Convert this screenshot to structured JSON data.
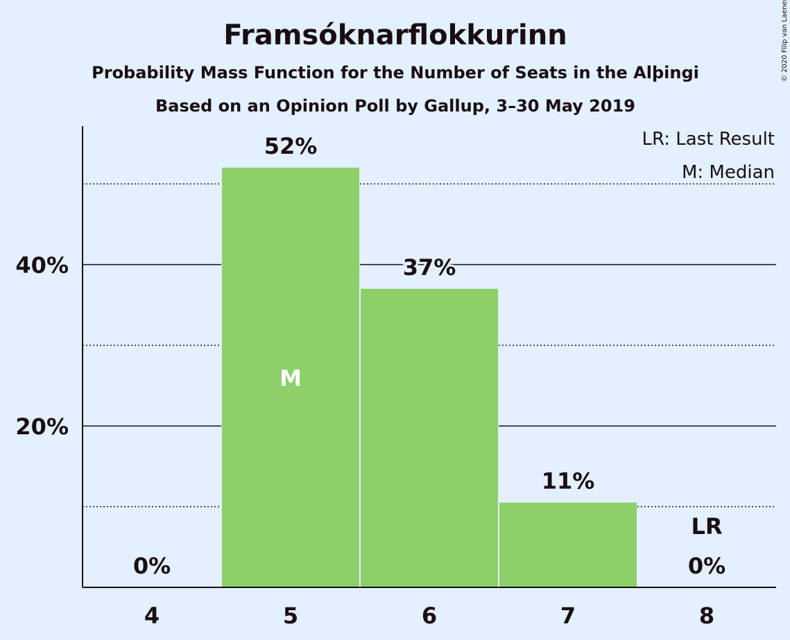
{
  "chart_data": {
    "type": "bar",
    "title": "Framsóknarflokkurinn",
    "subtitle": "Probability Mass Function for the Number of Seats in the Alþingi",
    "subtitle2": "Based on an Opinion Poll by Gallup, 3–30 May 2019",
    "categories": [
      "4",
      "5",
      "6",
      "7",
      "8"
    ],
    "values": [
      0,
      52,
      37,
      10.5,
      0
    ],
    "value_labels": [
      "0%",
      "52%",
      "37%",
      "11%",
      "0%"
    ],
    "ylim": [
      0,
      57
    ],
    "y_ticks": [
      20,
      40
    ],
    "y_tick_labels": [
      "20%",
      "40%"
    ],
    "y_minor_gridlines": [
      10,
      30,
      50
    ],
    "median_category": "5",
    "median_marker": "M",
    "last_result_category": "8",
    "last_result_marker": "LR",
    "legend": [
      "LR: Last Result",
      "M: Median"
    ],
    "legend_position": "top-right",
    "credit": "© 2020 Filip van Laenen",
    "colors": {
      "background": "#e2f0ff",
      "bar": "#8dcf68",
      "text": "#1a0d12",
      "median_text": "#ffffff"
    }
  }
}
